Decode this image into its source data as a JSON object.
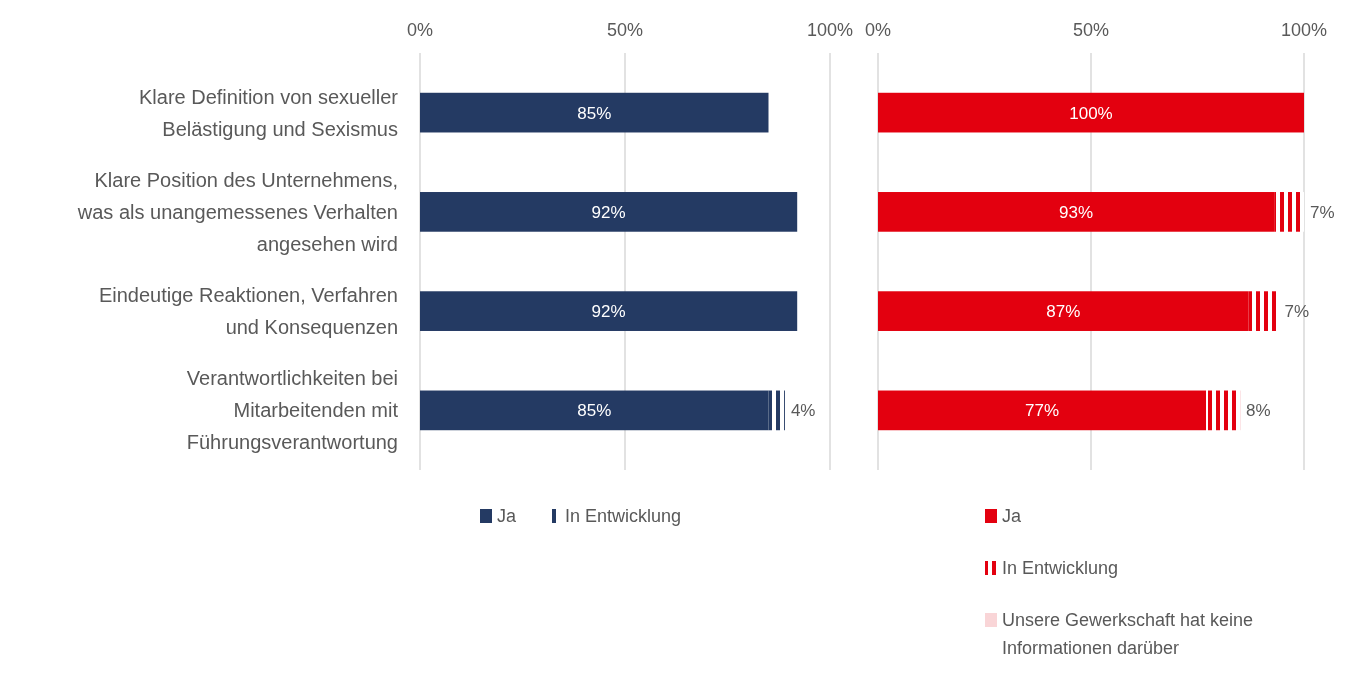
{
  "chart_data": [
    {
      "type": "bar",
      "orientation": "horizontal",
      "stacked": true,
      "categories": [
        "Klare Definition von sexueller Belästigung und Sexismus",
        "Klare Position des Unternehmens, was als unangemessenes Verhalten angesehen wird",
        "Eindeutige Reaktionen, Verfahren und Konsequenzen",
        "Verantwortlichkeiten bei Mitarbeitenden mit Führungsverantwortung"
      ],
      "series": [
        {
          "name": "Ja",
          "color": "#243a63",
          "values": [
            85,
            92,
            92,
            85
          ],
          "value_labels": [
            "85%",
            "92%",
            "92%",
            "85%"
          ]
        },
        {
          "name": "In Entwicklung",
          "color": "#243a63",
          "values": [
            null,
            null,
            null,
            4
          ],
          "value_labels": [
            null,
            null,
            null,
            "4%"
          ]
        }
      ],
      "xlim": [
        0,
        100
      ],
      "xticks": [
        {
          "value": 0,
          "label": "0%"
        },
        {
          "value": 50,
          "label": "50%"
        },
        {
          "value": 100,
          "label": "100%"
        }
      ],
      "grid": "x",
      "legend": "bottom"
    },
    {
      "type": "bar",
      "orientation": "horizontal",
      "stacked": true,
      "categories": [
        null,
        null,
        null,
        null
      ],
      "series": [
        {
          "name": "Ja",
          "color": "#e3000f",
          "values": [
            100,
            93,
            87,
            77
          ],
          "value_labels": [
            "100%",
            "93%",
            "87%",
            "77%"
          ]
        },
        {
          "name": "In Entwicklung",
          "color": "#e3000f",
          "values": [
            null,
            7,
            7,
            8
          ],
          "value_labels": [
            null,
            "7%",
            "7%",
            "8%"
          ]
        },
        {
          "name": "Unsere Gewerkschaft hat keine Informationen darüber",
          "color": "#f9d5d7",
          "values": [
            null,
            null,
            null,
            null
          ]
        }
      ],
      "xlim": [
        0,
        100
      ],
      "xticks": [
        {
          "value": 0,
          "label": "0%"
        },
        {
          "value": 50,
          "label": "50%"
        },
        {
          "value": 100,
          "label": "100%"
        }
      ],
      "grid": "x",
      "legend": "bottom",
      "tick_labels": "x"
    }
  ]
}
